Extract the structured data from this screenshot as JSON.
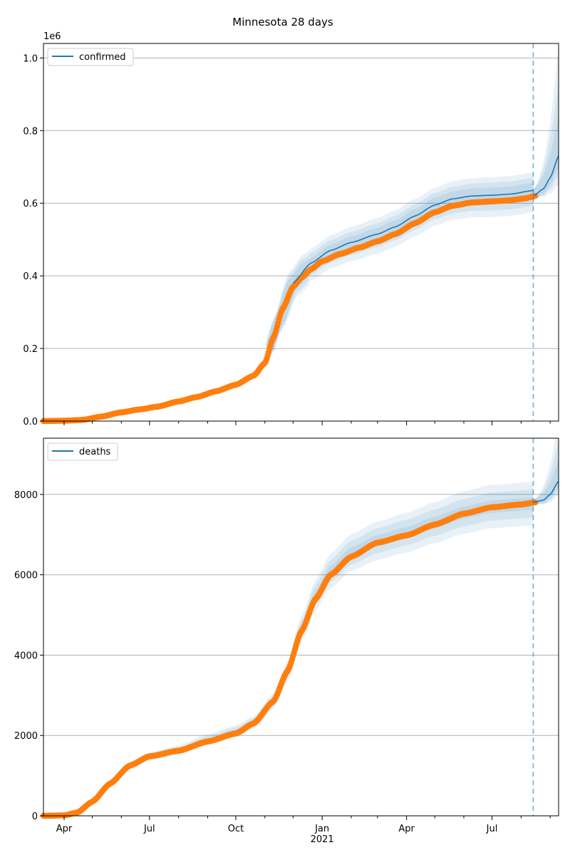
{
  "figure": {
    "title": "Minnesota 28 days"
  },
  "chart_data": [
    {
      "type": "line",
      "series": [
        {
          "name": "confirmed",
          "color": "#1f77b4"
        }
      ],
      "observed_color": "#ff7f0e",
      "band_color": "#1f77b4",
      "legend_position": "top-left",
      "grid": "horizontal",
      "scale_label": "1e6",
      "xlim": [
        "2020-03-10",
        "2021-09-10"
      ],
      "ylim": [
        0,
        1.04
      ],
      "yticks": [
        0.0,
        0.2,
        0.4,
        0.6,
        0.8,
        1.0
      ],
      "ytick_labels": [
        "0.0",
        "0.2",
        "0.4",
        "0.6",
        "0.8",
        "1.0"
      ],
      "forecast_start": "2021-08-14",
      "observed": [
        [
          "2020-03-10",
          0.0
        ],
        [
          "2020-04-01",
          0.001
        ],
        [
          "2020-04-20",
          0.003
        ],
        [
          "2020-05-10",
          0.012
        ],
        [
          "2020-06-01",
          0.024
        ],
        [
          "2020-06-20",
          0.032
        ],
        [
          "2020-07-10",
          0.04
        ],
        [
          "2020-08-01",
          0.054
        ],
        [
          "2020-08-20",
          0.066
        ],
        [
          "2020-09-10",
          0.082
        ],
        [
          "2020-10-01",
          0.1
        ],
        [
          "2020-10-20",
          0.125
        ],
        [
          "2020-11-01",
          0.16
        ],
        [
          "2020-11-10",
          0.23
        ],
        [
          "2020-11-20",
          0.31
        ],
        [
          "2020-12-01",
          0.37
        ],
        [
          "2020-12-10",
          0.395
        ],
        [
          "2020-12-20",
          0.418
        ],
        [
          "2021-01-01",
          0.44
        ],
        [
          "2021-01-20",
          0.46
        ],
        [
          "2021-02-10",
          0.478
        ],
        [
          "2021-03-01",
          0.495
        ],
        [
          "2021-03-20",
          0.515
        ],
        [
          "2021-04-10",
          0.545
        ],
        [
          "2021-05-01",
          0.575
        ],
        [
          "2021-05-20",
          0.593
        ],
        [
          "2021-06-10",
          0.602
        ],
        [
          "2021-07-01",
          0.605
        ],
        [
          "2021-07-20",
          0.608
        ],
        [
          "2021-08-05",
          0.613
        ],
        [
          "2021-08-16",
          0.62
        ]
      ],
      "forecast": [
        [
          "2020-12-01",
          0.38
        ],
        [
          "2020-12-20",
          0.435
        ],
        [
          "2021-01-10",
          0.47
        ],
        [
          "2021-02-01",
          0.492
        ],
        [
          "2021-03-01",
          0.515
        ],
        [
          "2021-03-20",
          0.535
        ],
        [
          "2021-04-10",
          0.565
        ],
        [
          "2021-05-01",
          0.595
        ],
        [
          "2021-05-20",
          0.612
        ],
        [
          "2021-06-10",
          0.62
        ],
        [
          "2021-07-01",
          0.622
        ],
        [
          "2021-07-20",
          0.625
        ],
        [
          "2021-08-14",
          0.635
        ],
        [
          "2021-08-14",
          0.62
        ],
        [
          "2021-08-25",
          0.64
        ],
        [
          "2021-09-01",
          0.67
        ],
        [
          "2021-09-10",
          0.73
        ]
      ],
      "bands": [
        {
          "spread": [
            0.0,
            0.0,
            0.02,
            0.05,
            0.08,
            0.09,
            0.095,
            0.1,
            0.1
          ],
          "widen": 0.28
        },
        {
          "spread": [
            0.0,
            0.0,
            0.015,
            0.035,
            0.055,
            0.06,
            0.065,
            0.07,
            0.07
          ],
          "widen": 0.18
        },
        {
          "spread": [
            0.0,
            0.0,
            0.008,
            0.018,
            0.03,
            0.035,
            0.04,
            0.042,
            0.042
          ],
          "widen": 0.09
        }
      ]
    },
    {
      "type": "line",
      "series": [
        {
          "name": "deaths",
          "color": "#1f77b4"
        }
      ],
      "observed_color": "#ff7f0e",
      "band_color": "#1f77b4",
      "legend_position": "top-left",
      "grid": "horizontal",
      "xlim": [
        "2020-03-10",
        "2021-09-10"
      ],
      "ylim": [
        0,
        9400
      ],
      "yticks": [
        0,
        2000,
        4000,
        6000,
        8000
      ],
      "ytick_labels": [
        "0",
        "2000",
        "4000",
        "6000",
        "8000"
      ],
      "xticks": [
        "2020-04-01",
        "2020-07-01",
        "2020-10-01",
        "2021-01-01",
        "2021-04-01",
        "2021-07-01"
      ],
      "xtick_labels": [
        "Apr",
        "Jul",
        "Oct",
        "Jan",
        "Apr",
        "Jul"
      ],
      "year_label": "2021",
      "forecast_start": "2021-08-14",
      "observed": [
        [
          "2020-03-10",
          0
        ],
        [
          "2020-04-01",
          10
        ],
        [
          "2020-04-15",
          80
        ],
        [
          "2020-05-01",
          350
        ],
        [
          "2020-05-20",
          800
        ],
        [
          "2020-06-10",
          1250
        ],
        [
          "2020-07-01",
          1480
        ],
        [
          "2020-08-01",
          1620
        ],
        [
          "2020-09-01",
          1850
        ],
        [
          "2020-10-01",
          2050
        ],
        [
          "2020-10-20",
          2300
        ],
        [
          "2020-11-10",
          2850
        ],
        [
          "2020-11-25",
          3600
        ],
        [
          "2020-12-10",
          4600
        ],
        [
          "2020-12-25",
          5400
        ],
        [
          "2021-01-10",
          6000
        ],
        [
          "2021-02-01",
          6450
        ],
        [
          "2021-03-01",
          6800
        ],
        [
          "2021-04-01",
          6980
        ],
        [
          "2021-05-01",
          7250
        ],
        [
          "2021-06-01",
          7520
        ],
        [
          "2021-07-01",
          7680
        ],
        [
          "2021-08-01",
          7750
        ],
        [
          "2021-08-16",
          7800
        ]
      ],
      "forecast": [
        [
          "2021-08-14",
          7800
        ],
        [
          "2021-08-25",
          7860
        ],
        [
          "2021-09-01",
          8000
        ],
        [
          "2021-09-10",
          8330
        ]
      ],
      "band_center": [
        [
          "2020-03-10",
          0
        ],
        [
          "2020-04-01",
          10
        ],
        [
          "2020-04-15",
          80
        ],
        [
          "2020-05-01",
          350
        ],
        [
          "2020-05-20",
          800
        ],
        [
          "2020-06-10",
          1250
        ],
        [
          "2020-07-01",
          1480
        ],
        [
          "2020-08-01",
          1640
        ],
        [
          "2020-09-01",
          1900
        ],
        [
          "2020-10-01",
          2100
        ],
        [
          "2020-10-20",
          2320
        ],
        [
          "2020-11-10",
          2850
        ],
        [
          "2020-11-25",
          3600
        ],
        [
          "2020-12-10",
          4650
        ],
        [
          "2020-12-25",
          5500
        ],
        [
          "2021-01-10",
          6100
        ],
        [
          "2021-02-01",
          6550
        ],
        [
          "2021-03-01",
          6850
        ],
        [
          "2021-04-01",
          7050
        ],
        [
          "2021-05-01",
          7300
        ],
        [
          "2021-06-01",
          7550
        ],
        [
          "2021-07-01",
          7700
        ],
        [
          "2021-08-14",
          7770
        ]
      ],
      "bands": [
        {
          "spread": 0.07,
          "widen": 1400
        },
        {
          "spread": 0.045,
          "widen": 900
        },
        {
          "spread": 0.02,
          "widen": 450
        }
      ]
    }
  ]
}
